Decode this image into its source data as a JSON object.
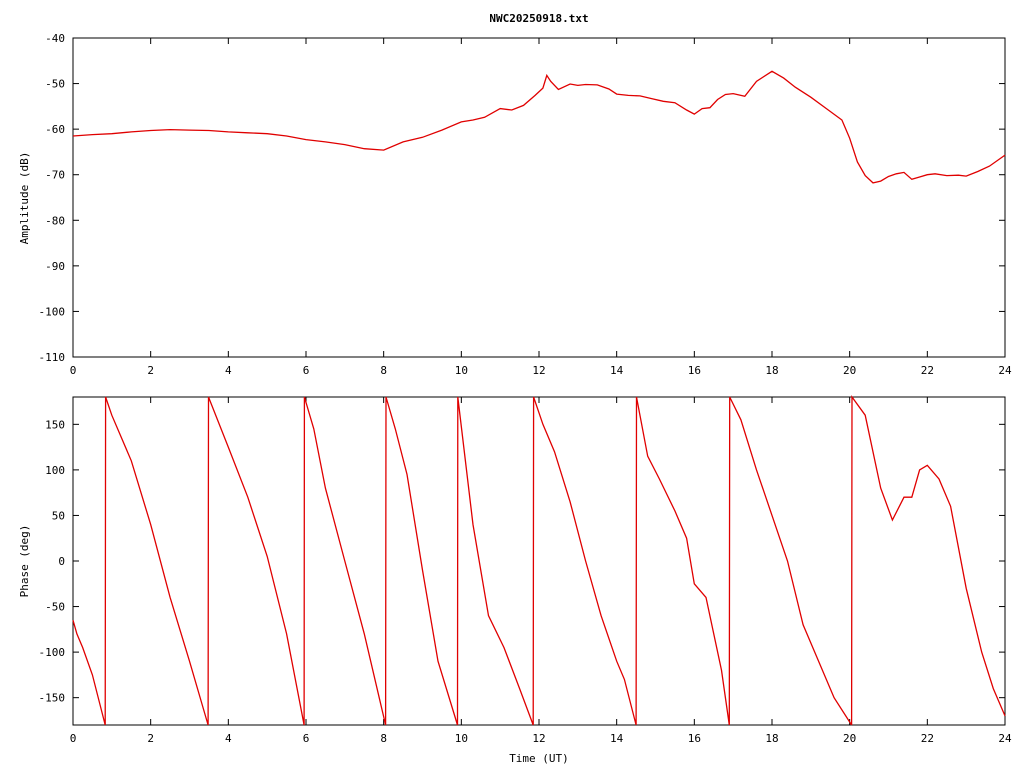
{
  "chart_data": [
    {
      "type": "line",
      "title": "NWC20250918.txt",
      "xlabel": "",
      "ylabel": "Amplitude (dB)",
      "xlim": [
        0,
        24
      ],
      "ylim": [
        -110,
        -40
      ],
      "x_ticks": [
        "0",
        "2",
        "4",
        "6",
        "8",
        "10",
        "12",
        "14",
        "16",
        "18",
        "20",
        "22",
        "24"
      ],
      "y_ticks": [
        "-40",
        "-50",
        "-60",
        "-70",
        "-80",
        "-90",
        "-100",
        "-110"
      ],
      "grid": false,
      "series": [
        {
          "color": "#e00000",
          "x": [
            0,
            0.5,
            1,
            1.5,
            2,
            2.5,
            3,
            3.5,
            4,
            4.5,
            5,
            5.5,
            6,
            6.5,
            7,
            7.5,
            8,
            8.5,
            9,
            9.5,
            10,
            10.3,
            10.6,
            11,
            11.3,
            11.6,
            11.9,
            12.1,
            12.2,
            12.3,
            12.5,
            12.8,
            13,
            13.2,
            13.5,
            13.8,
            14,
            14.3,
            14.6,
            14.9,
            15.2,
            15.5,
            15.8,
            16,
            16.2,
            16.4,
            16.6,
            16.8,
            17,
            17.3,
            17.6,
            18,
            18.3,
            18.6,
            19,
            19.4,
            19.8,
            20,
            20.2,
            20.4,
            20.6,
            20.8,
            21,
            21.2,
            21.4,
            21.6,
            21.8,
            22,
            22.2,
            22.5,
            22.8,
            23,
            23.3,
            23.6,
            24
          ],
          "y": [
            -61.5,
            -61.2,
            -61,
            -60.6,
            -60.3,
            -60.1,
            -60.2,
            -60.3,
            -60.6,
            -60.8,
            -61,
            -61.5,
            -62.3,
            -62.8,
            -63.4,
            -64.3,
            -64.6,
            -62.8,
            -61.8,
            -60.2,
            -58.4,
            -58,
            -57.4,
            -55.5,
            -55.8,
            -54.8,
            -52.6,
            -51,
            -48.2,
            -49.5,
            -51.3,
            -50.1,
            -50.4,
            -50.2,
            -50.3,
            -51.2,
            -52.3,
            -52.6,
            -52.7,
            -53.3,
            -53.9,
            -54.2,
            -55.8,
            -56.7,
            -55.5,
            -55.3,
            -53.5,
            -52.4,
            -52.2,
            -52.8,
            -49.5,
            -47.3,
            -48.8,
            -50.8,
            -53,
            -55.5,
            -58,
            -62,
            -67.2,
            -70.2,
            -71.8,
            -71.4,
            -70.4,
            -69.8,
            -69.5,
            -71,
            -70.5,
            -70,
            -69.8,
            -70.2,
            -70.1,
            -70.3,
            -69.3,
            -68.1,
            -65.7
          ]
        }
      ]
    },
    {
      "type": "line",
      "title": "",
      "xlabel": "Time (UT)",
      "ylabel": "Phase (deg)",
      "xlim": [
        0,
        24
      ],
      "ylim": [
        -180,
        180
      ],
      "x_ticks": [
        "0",
        "2",
        "4",
        "6",
        "8",
        "10",
        "12",
        "14",
        "16",
        "18",
        "20",
        "22",
        "24"
      ],
      "y_ticks": [
        "150",
        "100",
        "50",
        "0",
        "-50",
        "-100",
        "-150"
      ],
      "grid": false,
      "series": [
        {
          "color": "#e00000",
          "segments": [
            {
              "x": [
                0,
                0.1,
                0.25,
                0.5,
                0.83
              ],
              "y": [
                -65,
                -80,
                -95,
                -125,
                -180
              ]
            },
            {
              "x": [
                0.83,
                0.84,
                1,
                1.5,
                2,
                2.5,
                3,
                3.48
              ],
              "y": [
                -180,
                180,
                160,
                110,
                40,
                -40,
                -110,
                -180
              ]
            },
            {
              "x": [
                3.48,
                3.49,
                4,
                4.5,
                5,
                5.5,
                5.95
              ],
              "y": [
                -180,
                180,
                125,
                70,
                5,
                -80,
                -180
              ]
            },
            {
              "x": [
                5.95,
                5.96,
                6.2,
                6.5,
                7,
                7.5,
                8.05
              ],
              "y": [
                -180,
                180,
                145,
                80,
                0,
                -80,
                -180
              ]
            },
            {
              "x": [
                8.05,
                8.06,
                8.3,
                8.6,
                9,
                9.4,
                9.9
              ],
              "y": [
                -180,
                180,
                145,
                95,
                -10,
                -110,
                -180
              ]
            },
            {
              "x": [
                9.9,
                9.91,
                10.3,
                10.7,
                11.1,
                11.5,
                11.85
              ],
              "y": [
                -180,
                180,
                40,
                -60,
                -95,
                -140,
                -180
              ]
            },
            {
              "x": [
                11.85,
                11.86,
                12.1,
                12.4,
                12.8,
                13.2,
                13.6,
                14,
                14.2,
                14.5
              ],
              "y": [
                -180,
                180,
                150,
                120,
                65,
                0,
                -60,
                -110,
                -130,
                -180
              ]
            },
            {
              "x": [
                14.5,
                14.51,
                14.8,
                15.1,
                15.5,
                15.8,
                16,
                16.3,
                16.7,
                16.9
              ],
              "y": [
                -180,
                180,
                115,
                90,
                55,
                25,
                -25,
                -40,
                -120,
                -180
              ]
            },
            {
              "x": [
                16.9,
                16.91,
                17.2,
                17.6,
                18,
                18.4,
                18.8,
                19.2,
                19.6,
                20.05
              ],
              "y": [
                -180,
                180,
                155,
                100,
                50,
                0,
                -70,
                -110,
                -150,
                -180
              ]
            },
            {
              "x": [
                20.05,
                20.06,
                20.4,
                20.8,
                21.1,
                21.4,
                21.6,
                21.8,
                22,
                22.3,
                22.6,
                23,
                23.4,
                23.7,
                24
              ],
              "y": [
                -180,
                180,
                160,
                80,
                45,
                70,
                70,
                100,
                105,
                90,
                60,
                -30,
                -100,
                -140,
                -170
              ]
            }
          ]
        }
      ]
    }
  ]
}
